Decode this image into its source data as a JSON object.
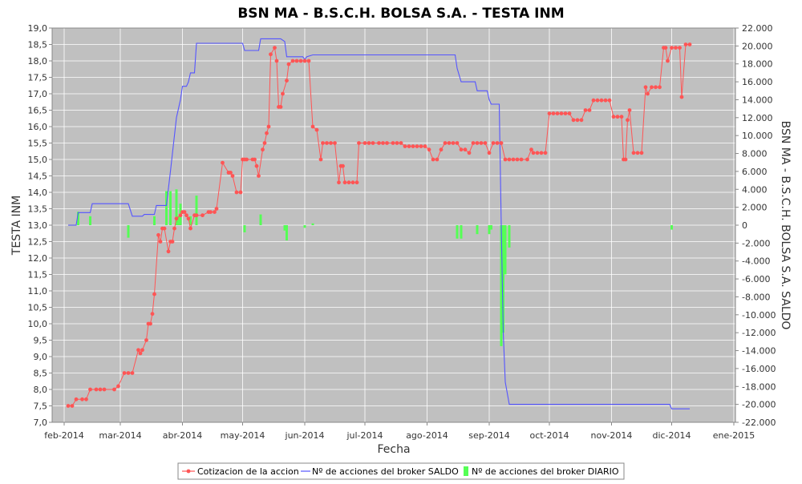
{
  "chart_data": {
    "type": "line",
    "title": "BSN MA - B.S.C.H. BOLSA S.A. - TESTA INM",
    "xlabel": "Fecha",
    "ylabel": "TESTA INM",
    "y2label": "BSN MA - B.S.C.H. BOLSA S.A. SALDO",
    "x_ticks": [
      "feb-2014",
      "mar-2014",
      "abr-2014",
      "may-2014",
      "jun-2014",
      "jul-2014",
      "ago-2014",
      "sep-2014",
      "oct-2014",
      "nov-2014",
      "dic-2014",
      "ene-2015"
    ],
    "ylim": [
      7.0,
      19.0
    ],
    "y_ticks": [
      "7,0",
      "7,5",
      "8,0",
      "8,5",
      "9,0",
      "9,5",
      "10,0",
      "10,5",
      "11,0",
      "11,5",
      "12,0",
      "12,5",
      "13,0",
      "13,5",
      "14,0",
      "14,5",
      "15,0",
      "15,5",
      "16,0",
      "16,5",
      "17,0",
      "17,5",
      "18,0",
      "18,5",
      "19,0"
    ],
    "y2lim": [
      -22000,
      22000
    ],
    "y2_ticks": [
      "22.000",
      "20.000",
      "18.000",
      "16.000",
      "14.000",
      "12.000",
      "10.000",
      "8.000",
      "6.000",
      "4.000",
      "2.000",
      "0",
      "-2.000",
      "-4.000",
      "-6.000",
      "-8.000",
      "-10.000",
      "-12.000",
      "-14.000",
      "-16.000",
      "-18.000",
      "-20.000",
      "-22.000"
    ],
    "grid": true,
    "legend_position": "bottom-center",
    "legend": [
      "Cotizacion de la accion",
      "Nº de acciones del broker SALDO",
      "Nº de acciones del broker DIARIO"
    ],
    "colors": {
      "price": "#ff5555",
      "saldo": "#5555ff",
      "diario": "#55ff55",
      "plot_bg": "#c0c0c0"
    },
    "series": [
      {
        "name": "Cotizacion de la accion",
        "axis": "left",
        "type": "line",
        "points": [
          [
            "2014-02-03",
            7.5
          ],
          [
            "2014-02-05",
            7.5
          ],
          [
            "2014-02-07",
            7.7
          ],
          [
            "2014-02-10",
            7.7
          ],
          [
            "2014-02-12",
            7.7
          ],
          [
            "2014-02-14",
            8.0
          ],
          [
            "2014-02-17",
            8.0
          ],
          [
            "2014-02-19",
            8.0
          ],
          [
            "2014-02-21",
            8.0
          ],
          [
            "2014-02-26",
            8.0
          ],
          [
            "2014-02-28",
            8.1
          ],
          [
            "2014-03-03",
            8.5
          ],
          [
            "2014-03-05",
            8.5
          ],
          [
            "2014-03-07",
            8.5
          ],
          [
            "2014-03-10",
            9.2
          ],
          [
            "2014-03-11",
            9.1
          ],
          [
            "2014-03-12",
            9.2
          ],
          [
            "2014-03-14",
            9.5
          ],
          [
            "2014-03-15",
            10.0
          ],
          [
            "2014-03-16",
            10.0
          ],
          [
            "2014-03-17",
            10.3
          ],
          [
            "2014-03-18",
            10.9
          ],
          [
            "2014-03-20",
            12.7
          ],
          [
            "2014-03-21",
            12.5
          ],
          [
            "2014-03-22",
            12.9
          ],
          [
            "2014-03-23",
            12.9
          ],
          [
            "2014-03-25",
            12.2
          ],
          [
            "2014-03-26",
            12.5
          ],
          [
            "2014-03-27",
            12.5
          ],
          [
            "2014-03-28",
            12.9
          ],
          [
            "2014-03-29",
            13.2
          ],
          [
            "2014-03-31",
            13.3
          ],
          [
            "2014-04-01",
            13.4
          ],
          [
            "2014-04-02",
            13.4
          ],
          [
            "2014-04-03",
            13.3
          ],
          [
            "2014-04-04",
            13.2
          ],
          [
            "2014-04-05",
            12.9
          ],
          [
            "2014-04-07",
            13.3
          ],
          [
            "2014-04-08",
            13.3
          ],
          [
            "2014-04-11",
            13.3
          ],
          [
            "2014-04-14",
            13.4
          ],
          [
            "2014-04-15",
            13.4
          ],
          [
            "2014-04-17",
            13.4
          ],
          [
            "2014-04-18",
            13.5
          ],
          [
            "2014-04-21",
            14.9
          ],
          [
            "2014-04-24",
            14.6
          ],
          [
            "2014-04-25",
            14.6
          ],
          [
            "2014-04-26",
            14.5
          ],
          [
            "2014-04-28",
            14.0
          ],
          [
            "2014-04-30",
            14.0
          ],
          [
            "2014-05-01",
            15.0
          ],
          [
            "2014-05-02",
            15.0
          ],
          [
            "2014-05-03",
            15.0
          ],
          [
            "2014-05-06",
            15.0
          ],
          [
            "2014-05-07",
            15.0
          ],
          [
            "2014-05-08",
            14.8
          ],
          [
            "2014-05-09",
            14.5
          ],
          [
            "2014-05-11",
            15.3
          ],
          [
            "2014-05-12",
            15.5
          ],
          [
            "2014-05-13",
            15.8
          ],
          [
            "2014-05-14",
            16.0
          ],
          [
            "2014-05-15",
            18.2
          ],
          [
            "2014-05-17",
            18.4
          ],
          [
            "2014-05-18",
            18.0
          ],
          [
            "2014-05-19",
            16.6
          ],
          [
            "2014-05-20",
            16.6
          ],
          [
            "2014-05-21",
            17.0
          ],
          [
            "2014-05-23",
            17.4
          ],
          [
            "2014-05-24",
            17.9
          ],
          [
            "2014-05-26",
            18.0
          ],
          [
            "2014-05-28",
            18.0
          ],
          [
            "2014-05-30",
            18.0
          ],
          [
            "2014-06-01",
            18.0
          ],
          [
            "2014-06-03",
            18.0
          ],
          [
            "2014-06-05",
            16.0
          ],
          [
            "2014-06-07",
            15.9
          ],
          [
            "2014-06-09",
            15.0
          ],
          [
            "2014-06-10",
            15.5
          ],
          [
            "2014-06-12",
            15.5
          ],
          [
            "2014-06-14",
            15.5
          ],
          [
            "2014-06-16",
            15.5
          ],
          [
            "2014-06-18",
            14.3
          ],
          [
            "2014-06-19",
            14.8
          ],
          [
            "2014-06-20",
            14.8
          ],
          [
            "2014-06-21",
            14.3
          ],
          [
            "2014-06-23",
            14.3
          ],
          [
            "2014-06-25",
            14.3
          ],
          [
            "2014-06-27",
            14.3
          ],
          [
            "2014-06-28",
            15.5
          ],
          [
            "2014-07-01",
            15.5
          ],
          [
            "2014-07-03",
            15.5
          ],
          [
            "2014-07-05",
            15.5
          ],
          [
            "2014-07-08",
            15.5
          ],
          [
            "2014-07-10",
            15.5
          ],
          [
            "2014-07-12",
            15.5
          ],
          [
            "2014-07-15",
            15.5
          ],
          [
            "2014-07-17",
            15.5
          ],
          [
            "2014-07-19",
            15.5
          ],
          [
            "2014-07-21",
            15.4
          ],
          [
            "2014-07-23",
            15.4
          ],
          [
            "2014-07-25",
            15.4
          ],
          [
            "2014-07-27",
            15.4
          ],
          [
            "2014-07-29",
            15.4
          ],
          [
            "2014-07-31",
            15.4
          ],
          [
            "2014-08-02",
            15.3
          ],
          [
            "2014-08-04",
            15.0
          ],
          [
            "2014-08-06",
            15.0
          ],
          [
            "2014-08-08",
            15.3
          ],
          [
            "2014-08-10",
            15.5
          ],
          [
            "2014-08-12",
            15.5
          ],
          [
            "2014-08-14",
            15.5
          ],
          [
            "2014-08-16",
            15.5
          ],
          [
            "2014-08-18",
            15.3
          ],
          [
            "2014-08-20",
            15.3
          ],
          [
            "2014-08-22",
            15.2
          ],
          [
            "2014-08-24",
            15.5
          ],
          [
            "2014-08-26",
            15.5
          ],
          [
            "2014-08-28",
            15.5
          ],
          [
            "2014-08-30",
            15.5
          ],
          [
            "2014-09-01",
            15.2
          ],
          [
            "2014-09-03",
            15.5
          ],
          [
            "2014-09-05",
            15.5
          ],
          [
            "2014-09-07",
            15.5
          ],
          [
            "2014-09-09",
            15.0
          ],
          [
            "2014-09-11",
            15.0
          ],
          [
            "2014-09-13",
            15.0
          ],
          [
            "2014-09-15",
            15.0
          ],
          [
            "2014-09-17",
            15.0
          ],
          [
            "2014-09-20",
            15.0
          ],
          [
            "2014-09-22",
            15.3
          ],
          [
            "2014-09-23",
            15.2
          ],
          [
            "2014-09-25",
            15.2
          ],
          [
            "2014-09-27",
            15.2
          ],
          [
            "2014-09-29",
            15.2
          ],
          [
            "2014-10-01",
            16.4
          ],
          [
            "2014-10-03",
            16.4
          ],
          [
            "2014-10-05",
            16.4
          ],
          [
            "2014-10-07",
            16.4
          ],
          [
            "2014-10-09",
            16.4
          ],
          [
            "2014-10-11",
            16.4
          ],
          [
            "2014-10-13",
            16.2
          ],
          [
            "2014-10-15",
            16.2
          ],
          [
            "2014-10-17",
            16.2
          ],
          [
            "2014-10-19",
            16.5
          ],
          [
            "2014-10-21",
            16.5
          ],
          [
            "2014-10-23",
            16.8
          ],
          [
            "2014-10-25",
            16.8
          ],
          [
            "2014-10-27",
            16.8
          ],
          [
            "2014-10-29",
            16.8
          ],
          [
            "2014-10-31",
            16.8
          ],
          [
            "2014-11-02",
            16.3
          ],
          [
            "2014-11-04",
            16.3
          ],
          [
            "2014-11-06",
            16.3
          ],
          [
            "2014-11-07",
            15.0
          ],
          [
            "2014-11-08",
            15.0
          ],
          [
            "2014-11-09",
            16.2
          ],
          [
            "2014-11-10",
            16.5
          ],
          [
            "2014-11-12",
            15.2
          ],
          [
            "2014-11-14",
            15.2
          ],
          [
            "2014-11-16",
            15.2
          ],
          [
            "2014-11-18",
            17.2
          ],
          [
            "2014-11-19",
            17.0
          ],
          [
            "2014-11-21",
            17.2
          ],
          [
            "2014-11-23",
            17.2
          ],
          [
            "2014-11-25",
            17.2
          ],
          [
            "2014-11-27",
            18.4
          ],
          [
            "2014-11-28",
            18.4
          ],
          [
            "2014-11-29",
            18.0
          ],
          [
            "2014-12-01",
            18.4
          ],
          [
            "2014-12-03",
            18.4
          ],
          [
            "2014-12-05",
            18.4
          ],
          [
            "2014-12-06",
            16.9
          ],
          [
            "2014-12-08",
            18.5
          ],
          [
            "2014-12-10",
            18.5
          ]
        ]
      },
      {
        "name": "Nº de acciones del broker SALDO",
        "axis": "right",
        "type": "line",
        "points": [
          [
            "2014-02-03",
            0
          ],
          [
            "2014-02-07",
            0
          ],
          [
            "2014-02-08",
            1400
          ],
          [
            "2014-02-14",
            1400
          ],
          [
            "2014-02-15",
            2400
          ],
          [
            "2014-03-05",
            2400
          ],
          [
            "2014-03-07",
            1000
          ],
          [
            "2014-03-12",
            1000
          ],
          [
            "2014-03-13",
            1200
          ],
          [
            "2014-03-18",
            1200
          ],
          [
            "2014-03-19",
            2200
          ],
          [
            "2014-03-24",
            2200
          ],
          [
            "2014-03-26",
            6000
          ],
          [
            "2014-03-27",
            8000
          ],
          [
            "2014-03-29",
            12000
          ],
          [
            "2014-03-30",
            13000
          ],
          [
            "2014-03-31",
            14000
          ],
          [
            "2014-04-01",
            15500
          ],
          [
            "2014-04-03",
            15500
          ],
          [
            "2014-04-04",
            16000
          ],
          [
            "2014-04-05",
            17000
          ],
          [
            "2014-04-07",
            17000
          ],
          [
            "2014-04-08",
            20300
          ],
          [
            "2014-04-09",
            20300
          ],
          [
            "2014-05-01",
            20300
          ],
          [
            "2014-05-02",
            19500
          ],
          [
            "2014-05-09",
            19500
          ],
          [
            "2014-05-10",
            20800
          ],
          [
            "2014-05-20",
            20800
          ],
          [
            "2014-05-22",
            20500
          ],
          [
            "2014-05-23",
            18800
          ],
          [
            "2014-05-31",
            18800
          ],
          [
            "2014-06-01",
            18500
          ],
          [
            "2014-06-02",
            18800
          ],
          [
            "2014-06-05",
            19000
          ],
          [
            "2014-08-15",
            19000
          ],
          [
            "2014-08-16",
            17500
          ],
          [
            "2014-08-18",
            16000
          ],
          [
            "2014-08-25",
            16000
          ],
          [
            "2014-08-26",
            15000
          ],
          [
            "2014-08-31",
            15000
          ],
          [
            "2014-09-01",
            14000
          ],
          [
            "2014-09-02",
            13500
          ],
          [
            "2014-09-06",
            13500
          ],
          [
            "2014-09-07",
            0
          ],
          [
            "2014-09-08",
            -12000
          ],
          [
            "2014-09-09",
            -17500
          ],
          [
            "2014-09-11",
            -20000
          ],
          [
            "2014-11-30",
            -20000
          ],
          [
            "2014-12-01",
            -20500
          ],
          [
            "2014-12-10",
            -20500
          ]
        ]
      },
      {
        "name": "Nº de acciones del broker DIARIO",
        "axis": "right",
        "type": "bar",
        "points": [
          [
            "2014-02-08",
            1500
          ],
          [
            "2014-02-14",
            1000
          ],
          [
            "2014-03-05",
            -1400
          ],
          [
            "2014-03-18",
            1000
          ],
          [
            "2014-03-24",
            3800
          ],
          [
            "2014-03-26",
            3800
          ],
          [
            "2014-03-29",
            4000
          ],
          [
            "2014-03-30",
            1000
          ],
          [
            "2014-03-31",
            2400
          ],
          [
            "2014-04-05",
            1000
          ],
          [
            "2014-04-08",
            3300
          ],
          [
            "2014-05-02",
            -800
          ],
          [
            "2014-05-10",
            1200
          ],
          [
            "2014-05-22",
            -600
          ],
          [
            "2014-05-23",
            -1700
          ],
          [
            "2014-06-01",
            -300
          ],
          [
            "2014-06-05",
            200
          ],
          [
            "2014-08-16",
            -1500
          ],
          [
            "2014-08-18",
            -1500
          ],
          [
            "2014-08-26",
            -1000
          ],
          [
            "2014-09-01",
            -1000
          ],
          [
            "2014-09-02",
            -500
          ],
          [
            "2014-09-07",
            -13500
          ],
          [
            "2014-09-08",
            -12000
          ],
          [
            "2014-09-09",
            -5500
          ],
          [
            "2014-09-11",
            -2500
          ],
          [
            "2014-12-01",
            -500
          ]
        ]
      }
    ]
  }
}
